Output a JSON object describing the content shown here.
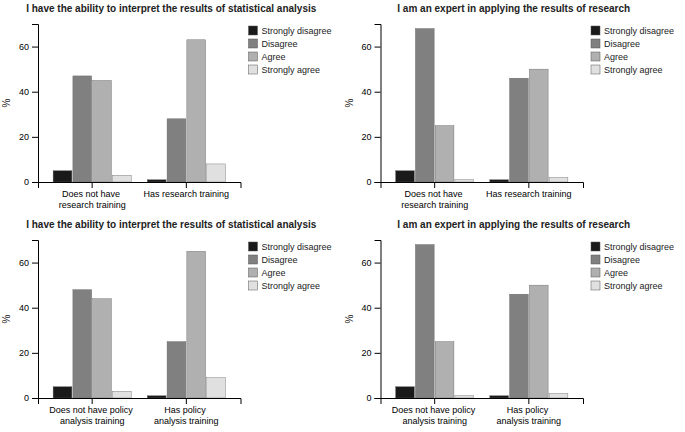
{
  "chart_data": [
    {
      "type": "bar",
      "title": "I have the ability to interpret the results of statistical analysis",
      "categories": [
        "Does not have research training",
        "Has research training"
      ],
      "series": [
        {
          "name": "Strongly disagree",
          "color": "#1a1a1a",
          "values": [
            5,
            1
          ]
        },
        {
          "name": "Disagree",
          "color": "#808080",
          "values": [
            47,
            28
          ]
        },
        {
          "name": "Agree",
          "color": "#b0b0b0",
          "values": [
            45,
            63
          ]
        },
        {
          "name": "Strongly agree",
          "color": "#e0e0e0",
          "values": [
            3,
            8
          ]
        }
      ],
      "ylabel": "%",
      "ylim": [
        0,
        70
      ],
      "yticks": [
        0,
        20,
        40,
        60
      ],
      "legend": "upper right",
      "grid": false
    },
    {
      "type": "bar",
      "title": "I am an expert in applying the results of research",
      "categories": [
        "Does not have research training",
        "Has research training"
      ],
      "series": [
        {
          "name": "Strongly disagree",
          "color": "#1a1a1a",
          "values": [
            5,
            1
          ]
        },
        {
          "name": "Disagree",
          "color": "#808080",
          "values": [
            68,
            46
          ]
        },
        {
          "name": "Agree",
          "color": "#b0b0b0",
          "values": [
            25,
            50
          ]
        },
        {
          "name": "Strongly agree",
          "color": "#e0e0e0",
          "values": [
            1,
            2
          ]
        }
      ],
      "ylabel": "%",
      "ylim": [
        0,
        70
      ],
      "yticks": [
        0,
        20,
        40,
        60
      ],
      "legend": "upper right",
      "grid": false
    },
    {
      "type": "bar",
      "title": "I have the ability to interpret the results of statistical analysis",
      "categories": [
        "Does not have policy analysis training",
        "Has policy analysis training"
      ],
      "series": [
        {
          "name": "Strongly disagree",
          "color": "#1a1a1a",
          "values": [
            5,
            1
          ]
        },
        {
          "name": "Disagree",
          "color": "#808080",
          "values": [
            48,
            25
          ]
        },
        {
          "name": "Agree",
          "color": "#b0b0b0",
          "values": [
            44,
            65
          ]
        },
        {
          "name": "Strongly agree",
          "color": "#e0e0e0",
          "values": [
            3,
            9
          ]
        }
      ],
      "ylabel": "%",
      "ylim": [
        0,
        70
      ],
      "yticks": [
        0,
        20,
        40,
        60
      ],
      "legend": "upper right",
      "grid": false
    },
    {
      "type": "bar",
      "title": "I am an expert in applying the results of research",
      "categories": [
        "Does not have policy analysis training",
        "Has policy analysis training"
      ],
      "series": [
        {
          "name": "Strongly disagree",
          "color": "#1a1a1a",
          "values": [
            5,
            1
          ]
        },
        {
          "name": "Disagree",
          "color": "#808080",
          "values": [
            68,
            46
          ]
        },
        {
          "name": "Agree",
          "color": "#b0b0b0",
          "values": [
            25,
            50
          ]
        },
        {
          "name": "Strongly agree",
          "color": "#e0e0e0",
          "values": [
            1,
            2
          ]
        }
      ],
      "ylabel": "%",
      "ylim": [
        0,
        70
      ],
      "yticks": [
        0,
        20,
        40,
        60
      ],
      "legend": "upper right",
      "grid": false
    }
  ]
}
